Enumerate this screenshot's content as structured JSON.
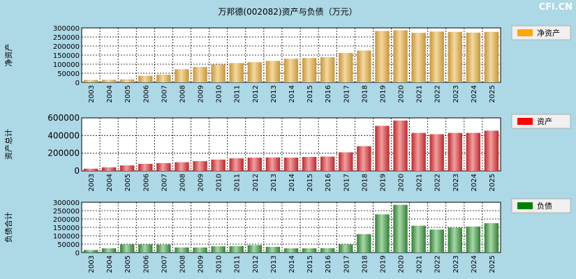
{
  "title": "万邦德(002082)资产与负债（万元）",
  "brand": "CFi.CN",
  "colors": {
    "background": "#add8e6",
    "plot_bg": "#ffffff",
    "grid": "#000000",
    "net_assets": "#ffa500",
    "total_assets": "#ff0000",
    "liabilities": "#008000"
  },
  "chart_data": [
    {
      "type": "bar",
      "ylabel": "净资产",
      "legend": "净资产",
      "legend_position": "right",
      "categories": [
        "2003",
        "2004",
        "2005",
        "2006",
        "2007",
        "2008",
        "2009",
        "2010",
        "2011",
        "2012",
        "2013",
        "2014",
        "2015",
        "2016",
        "2017",
        "2018",
        "2019",
        "2020",
        "2021",
        "2022",
        "2023",
        "2024",
        "2025"
      ],
      "values": [
        13000,
        14000,
        16000,
        36000,
        42000,
        72000,
        85000,
        98000,
        106000,
        111000,
        118000,
        130000,
        134000,
        138000,
        162000,
        175000,
        283000,
        287000,
        273000,
        280000,
        278000,
        274000,
        278000
      ],
      "yticks": [
        "0",
        "50000",
        "100000",
        "150000",
        "200000",
        "250000",
        "300000"
      ],
      "ylim": [
        0,
        300000
      ]
    },
    {
      "type": "bar",
      "ylabel": "资产总计",
      "legend": "资产",
      "legend_position": "right",
      "categories": [
        "2003",
        "2004",
        "2005",
        "2006",
        "2007",
        "2008",
        "2009",
        "2010",
        "2011",
        "2012",
        "2013",
        "2014",
        "2015",
        "2016",
        "2017",
        "2018",
        "2019",
        "2020",
        "2021",
        "2022",
        "2023",
        "2024",
        "2025"
      ],
      "values": [
        25000,
        40000,
        62000,
        80000,
        88000,
        98000,
        110000,
        128000,
        142000,
        150000,
        152000,
        150000,
        158000,
        162000,
        210000,
        280000,
        510000,
        570000,
        430000,
        415000,
        430000,
        430000,
        455000
      ],
      "yticks": [
        "0",
        "200000",
        "400000",
        "600000"
      ],
      "ylim": [
        0,
        600000
      ]
    },
    {
      "type": "bar",
      "ylabel": "负债合计",
      "legend": "负债",
      "legend_position": "right",
      "categories": [
        "2003",
        "2004",
        "2005",
        "2006",
        "2007",
        "2008",
        "2009",
        "2010",
        "2011",
        "2012",
        "2013",
        "2014",
        "2015",
        "2016",
        "2017",
        "2018",
        "2019",
        "2020",
        "2021",
        "2022",
        "2023",
        "2024",
        "2025"
      ],
      "values": [
        15000,
        25000,
        48000,
        48000,
        47000,
        30000,
        30000,
        37000,
        38000,
        44000,
        34000,
        25000,
        25000,
        26000,
        48000,
        110000,
        228000,
        285000,
        160000,
        137000,
        148000,
        155000,
        175000
      ],
      "yticks": [
        "0",
        "50000",
        "100000",
        "150000",
        "200000",
        "250000",
        "300000"
      ],
      "ylim": [
        0,
        300000
      ]
    }
  ]
}
